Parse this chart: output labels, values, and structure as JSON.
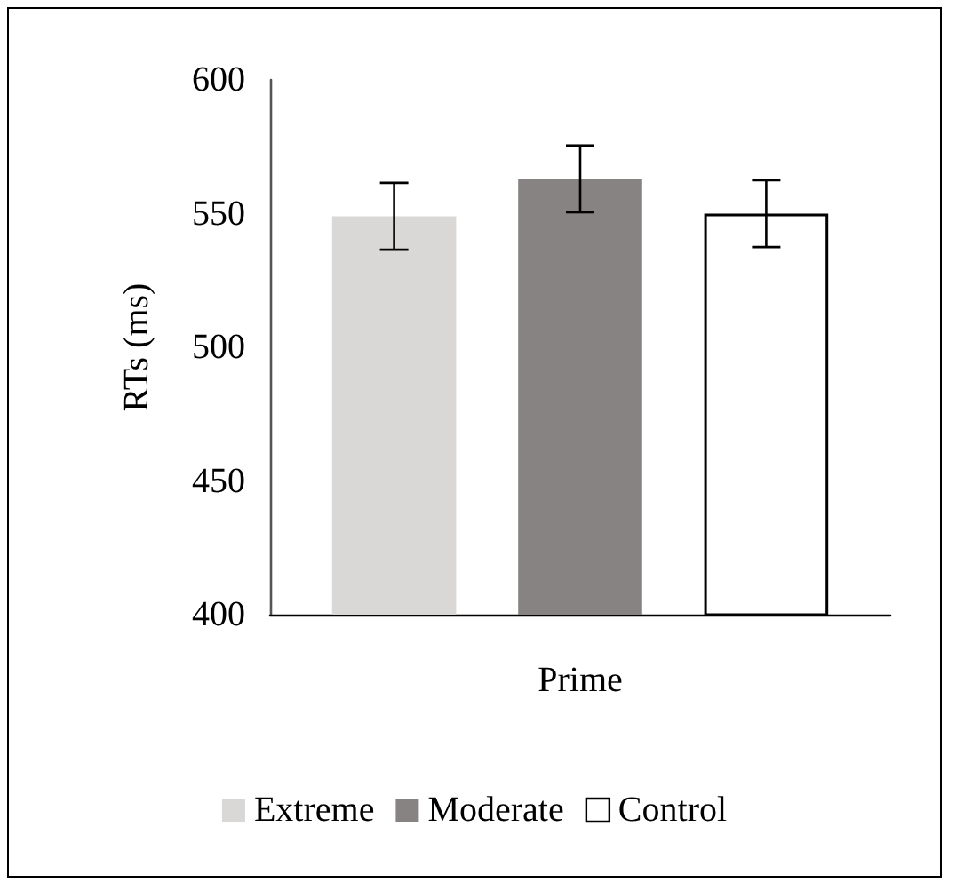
{
  "chart_data": {
    "type": "bar",
    "xlabel": "Prime",
    "ylabel": "RTs (ms)",
    "categories": [
      null
    ],
    "series": [
      {
        "name": "Extreme",
        "color": "#d9d8d7",
        "values": [
          549
        ],
        "errors": [
          12.5
        ]
      },
      {
        "name": "Moderate",
        "color": "#878382",
        "values": [
          563
        ],
        "errors": [
          12.5
        ]
      },
      {
        "name": "Control",
        "color": "#ffffff",
        "values": [
          550
        ],
        "errors": [
          12.5
        ]
      }
    ],
    "ylim": [
      400,
      600
    ],
    "yticks": [
      400,
      450,
      500,
      550,
      600
    ],
    "grid": false,
    "legend": "bottom"
  }
}
